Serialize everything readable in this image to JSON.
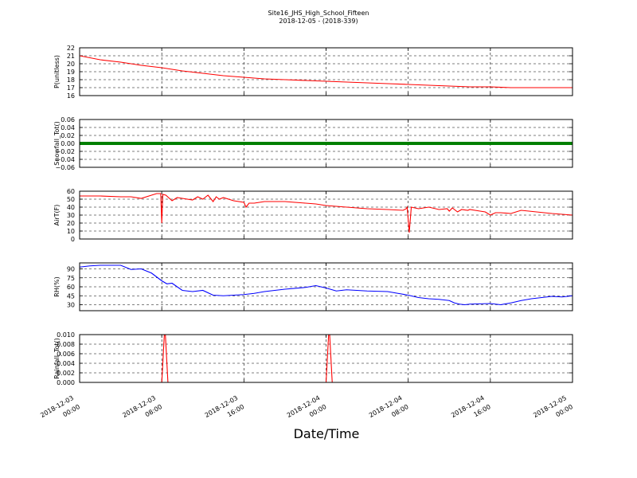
{
  "title": "Site16_JHS_High_School_Fifteen",
  "subtitle": "2018-12-05 - (2018-339)",
  "xlabel": "Date/Time",
  "x_ticks": [
    {
      "t": 0,
      "line1": "2018-12-03",
      "line2": "00:00"
    },
    {
      "t": 8,
      "line1": "2018-12-03",
      "line2": "08:00"
    },
    {
      "t": 16,
      "line1": "2018-12-03",
      "line2": "16:00"
    },
    {
      "t": 24,
      "line1": "2018-12-04",
      "line2": "00:00"
    },
    {
      "t": 32,
      "line1": "2018-12-04",
      "line2": "08:00"
    },
    {
      "t": 40,
      "line1": "2018-12-04",
      "line2": "16:00"
    },
    {
      "t": 48,
      "line1": "2018-12-05",
      "line2": "00:00"
    }
  ],
  "chart_data": [
    {
      "type": "line",
      "ylabel": "P(unitless)",
      "ylim": [
        16,
        22
      ],
      "yticks": [
        "16",
        "17",
        "18",
        "19",
        "20",
        "21",
        "22"
      ],
      "color": "#ff0000",
      "grid": true,
      "series": [
        {
          "x": [
            0,
            2,
            4,
            6,
            8,
            10,
            12,
            14,
            16,
            18,
            20,
            22,
            24,
            26,
            28,
            30,
            32,
            34,
            36,
            38,
            40,
            42,
            44,
            46,
            48
          ],
          "values": [
            21.0,
            20.5,
            20.2,
            19.8,
            19.5,
            19.1,
            18.8,
            18.5,
            18.3,
            18.1,
            18.0,
            17.9,
            17.8,
            17.7,
            17.6,
            17.5,
            17.4,
            17.3,
            17.2,
            17.1,
            17.1,
            17.0,
            17.0,
            17.0,
            17.0
          ]
        }
      ]
    },
    {
      "type": "line",
      "ylabel": "Snowfall_Tot()",
      "ylim": [
        -0.06,
        0.06
      ],
      "yticks": [
        "−0.06",
        "−0.04",
        "−0.02",
        "0.00",
        "0.02",
        "0.04",
        "0.06"
      ],
      "color": "#008000",
      "grid": true,
      "series": [
        {
          "x": [
            0,
            48
          ],
          "values": [
            0,
            0
          ]
        }
      ]
    },
    {
      "type": "line",
      "ylabel": "AirT(F)",
      "ylim": [
        0,
        60
      ],
      "yticks": [
        "0",
        "10",
        "20",
        "30",
        "40",
        "50",
        "60"
      ],
      "color": "#ff0000",
      "grid": true,
      "series": [
        {
          "x": [
            0,
            2,
            4,
            5,
            6,
            7,
            7.5,
            7.9,
            8.0,
            8.1,
            8.4,
            9,
            9.5,
            10,
            11,
            11.5,
            12,
            12.5,
            13,
            13.3,
            13.6,
            14,
            15,
            16,
            16.2,
            16.5,
            17,
            18,
            20,
            22,
            23,
            24,
            26,
            28,
            30,
            31.5,
            31.8,
            31.9,
            32.1,
            32.3,
            33,
            34,
            35,
            35.8,
            36,
            36.3,
            36.8,
            37.2,
            37.8,
            38,
            39,
            39.5,
            40,
            40.5,
            41,
            42,
            43,
            46,
            48
          ],
          "values": [
            54,
            54,
            53,
            53,
            51,
            55,
            57,
            57,
            20,
            56,
            55,
            48,
            52,
            51,
            49,
            53,
            50,
            55,
            47,
            53,
            50,
            52,
            48,
            46,
            40,
            45,
            45,
            47,
            47,
            45,
            44,
            42,
            40,
            38,
            37,
            36,
            38,
            40,
            8,
            40,
            38,
            40,
            37,
            38,
            35,
            39,
            34,
            37,
            36,
            37,
            35,
            34,
            30,
            33,
            33,
            32,
            36,
            32,
            30
          ]
        }
      ]
    },
    {
      "type": "line",
      "ylabel": "RH(%)",
      "ylim": [
        20,
        100
      ],
      "yticks": [
        "30",
        "45",
        "60",
        "75",
        "90"
      ],
      "color": "#0000ff",
      "grid": true,
      "series": [
        {
          "x": [
            0,
            1,
            2,
            4,
            5,
            6,
            7,
            8,
            8.5,
            9,
            10,
            11,
            12,
            12.5,
            13,
            14,
            16,
            17,
            18,
            20,
            22,
            23,
            24,
            25,
            26,
            28,
            30,
            31,
            32,
            33,
            34,
            35,
            36,
            36.5,
            37,
            37.5,
            38,
            40,
            41,
            42,
            43,
            44,
            45,
            46,
            47,
            48
          ],
          "values": [
            93,
            95,
            96,
            96,
            89,
            90,
            83,
            70,
            65,
            66,
            54,
            52,
            54,
            50,
            46,
            45,
            47,
            49,
            52,
            56,
            59,
            62,
            58,
            53,
            55,
            53,
            52,
            49,
            46,
            42,
            40,
            39,
            37,
            33,
            31,
            30,
            31,
            32,
            30,
            33,
            37,
            40,
            42,
            44,
            43,
            45
          ]
        }
      ]
    },
    {
      "type": "line",
      "ylabel": "Rainfall_Tot()",
      "ylim": [
        0,
        0.01
      ],
      "yticks": [
        "0.000",
        "0.002",
        "0.004",
        "0.006",
        "0.008",
        "0.010"
      ],
      "color": "#ff0000",
      "grid": true,
      "series": [
        {
          "x": [
            0,
            8.0,
            8.3,
            8.6,
            24.0,
            24.3,
            24.6,
            48
          ],
          "values": [
            0,
            0,
            0.012,
            0,
            0,
            0.012,
            0,
            0
          ]
        }
      ]
    }
  ]
}
